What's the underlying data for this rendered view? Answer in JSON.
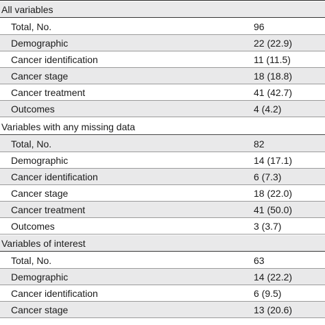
{
  "sections": [
    {
      "title": "All variables",
      "rows": [
        {
          "label": "Total, No.",
          "value": "96"
        },
        {
          "label": "Demographic",
          "value": "22 (22.9)"
        },
        {
          "label": "Cancer identification",
          "value": "11 (11.5)"
        },
        {
          "label": "Cancer stage",
          "value": "18 (18.8)"
        },
        {
          "label": "Cancer treatment",
          "value": "41 (42.7)"
        },
        {
          "label": "Outcomes",
          "value": "4 (4.2)"
        }
      ]
    },
    {
      "title": "Variables with any missing data",
      "rows": [
        {
          "label": "Total, No.",
          "value": "82"
        },
        {
          "label": "Demographic",
          "value": "14 (17.1)"
        },
        {
          "label": "Cancer identification",
          "value": "6 (7.3)"
        },
        {
          "label": "Cancer stage",
          "value": "18 (22.0)"
        },
        {
          "label": "Cancer treatment",
          "value": "41 (50.0)"
        },
        {
          "label": "Outcomes",
          "value": "3 (3.7)"
        }
      ]
    },
    {
      "title": "Variables of interest",
      "rows": [
        {
          "label": "Total, No.",
          "value": "63"
        },
        {
          "label": "Demographic",
          "value": "14 (22.2)"
        },
        {
          "label": "Cancer identification",
          "value": "6 (9.5)"
        },
        {
          "label": "Cancer stage",
          "value": "13 (20.6)"
        }
      ]
    }
  ]
}
